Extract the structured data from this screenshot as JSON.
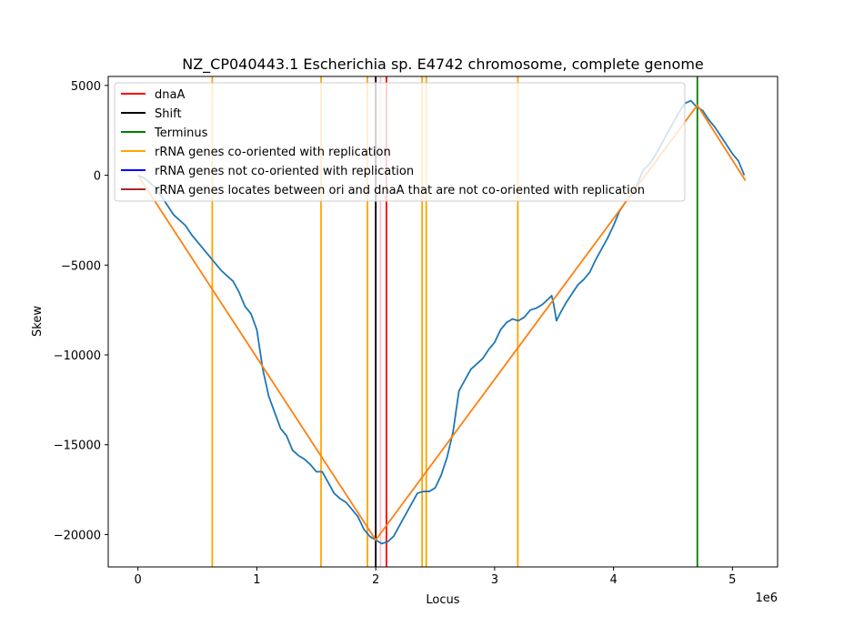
{
  "chart_data": {
    "type": "line",
    "title": "NZ_CP040443.1 Escherichia sp. E4742 chromosome, complete genome",
    "xlabel": "Locus",
    "ylabel": "Skew",
    "x_offset_label": "1e6",
    "xlim": [
      -250000,
      5380000
    ],
    "ylim": [
      -21800,
      5500
    ],
    "x_ticks": [
      {
        "value": 0,
        "label": "0"
      },
      {
        "value": 1000000,
        "label": "1"
      },
      {
        "value": 2000000,
        "label": "2"
      },
      {
        "value": 3000000,
        "label": "3"
      },
      {
        "value": 4000000,
        "label": "4"
      },
      {
        "value": 5000000,
        "label": "5"
      }
    ],
    "y_ticks": [
      {
        "value": 5000,
        "label": "5000"
      },
      {
        "value": 0,
        "label": "0"
      },
      {
        "value": -5000,
        "label": "−5000"
      },
      {
        "value": -10000,
        "label": "−10000"
      },
      {
        "value": -15000,
        "label": "−15000"
      },
      {
        "value": -20000,
        "label": "−20000"
      }
    ],
    "grid": false,
    "legend_position": "top-left",
    "legend": [
      {
        "label": "dnaA",
        "color": "#ff0000"
      },
      {
        "label": "Shift",
        "color": "#000000"
      },
      {
        "label": "Terminus",
        "color": "#008000"
      },
      {
        "label": "rRNA genes co-oriented with replication",
        "color": "#ffa500"
      },
      {
        "label": "rRNA genes not co-oriented with replication",
        "color": "#0000ff"
      },
      {
        "label": "rRNA genes locates between ori and dnaA that are not co-oriented with replication",
        "color": "#a52a2a"
      }
    ],
    "vertical_lines": [
      {
        "x": 625000,
        "color": "#ffa500",
        "kind": "rRNA co-oriented"
      },
      {
        "x": 1540000,
        "color": "#ffa500",
        "kind": "rRNA co-oriented"
      },
      {
        "x": 1930000,
        "color": "#ffa500",
        "kind": "rRNA co-oriented"
      },
      {
        "x": 2390000,
        "color": "#ffa500",
        "kind": "rRNA co-oriented"
      },
      {
        "x": 2425000,
        "color": "#ffa500",
        "kind": "rRNA co-oriented"
      },
      {
        "x": 3195000,
        "color": "#ffa500",
        "kind": "rRNA co-oriented"
      },
      {
        "x": 2000000,
        "color": "#000000",
        "kind": "Shift"
      },
      {
        "x": 2040000,
        "color": "#ffc0cb",
        "kind": "light"
      },
      {
        "x": 2090000,
        "color": "#ff0000",
        "kind": "dnaA"
      },
      {
        "x": 4705000,
        "color": "#008000",
        "kind": "Terminus"
      }
    ],
    "series": [
      {
        "color": "#1f77b4",
        "points": [
          [
            0,
            0
          ],
          [
            50000,
            -150
          ],
          [
            100000,
            -400
          ],
          [
            150000,
            -700
          ],
          [
            200000,
            -1200
          ],
          [
            250000,
            -1700
          ],
          [
            300000,
            -2200
          ],
          [
            350000,
            -2500
          ],
          [
            400000,
            -2800
          ],
          [
            450000,
            -3300
          ],
          [
            500000,
            -3700
          ],
          [
            550000,
            -4100
          ],
          [
            600000,
            -4500
          ],
          [
            650000,
            -4900
          ],
          [
            700000,
            -5300
          ],
          [
            750000,
            -5600
          ],
          [
            800000,
            -5900
          ],
          [
            850000,
            -6500
          ],
          [
            900000,
            -7300
          ],
          [
            950000,
            -7700
          ],
          [
            1000000,
            -8600
          ],
          [
            1050000,
            -10800
          ],
          [
            1100000,
            -12300
          ],
          [
            1150000,
            -13200
          ],
          [
            1200000,
            -14100
          ],
          [
            1250000,
            -14500
          ],
          [
            1300000,
            -15300
          ],
          [
            1350000,
            -15600
          ],
          [
            1400000,
            -15800
          ],
          [
            1450000,
            -16100
          ],
          [
            1500000,
            -16500
          ],
          [
            1550000,
            -16500
          ],
          [
            1600000,
            -17100
          ],
          [
            1650000,
            -17700
          ],
          [
            1700000,
            -18000
          ],
          [
            1750000,
            -18200
          ],
          [
            1800000,
            -18600
          ],
          [
            1850000,
            -19000
          ],
          [
            1900000,
            -19700
          ],
          [
            1950000,
            -20100
          ],
          [
            2000000,
            -20300
          ],
          [
            2050000,
            -20500
          ],
          [
            2100000,
            -20400
          ],
          [
            2150000,
            -20100
          ],
          [
            2200000,
            -19500
          ],
          [
            2250000,
            -18900
          ],
          [
            2300000,
            -18300
          ],
          [
            2350000,
            -17700
          ],
          [
            2400000,
            -17600
          ],
          [
            2450000,
            -17600
          ],
          [
            2500000,
            -17400
          ],
          [
            2550000,
            -16700
          ],
          [
            2600000,
            -15700
          ],
          [
            2650000,
            -14300
          ],
          [
            2700000,
            -12000
          ],
          [
            2750000,
            -11400
          ],
          [
            2800000,
            -10800
          ],
          [
            2850000,
            -10500
          ],
          [
            2900000,
            -10200
          ],
          [
            2950000,
            -9700
          ],
          [
            3000000,
            -9300
          ],
          [
            3050000,
            -8600
          ],
          [
            3100000,
            -8200
          ],
          [
            3150000,
            -8000
          ],
          [
            3200000,
            -8100
          ],
          [
            3250000,
            -7900
          ],
          [
            3300000,
            -7500
          ],
          [
            3350000,
            -7400
          ],
          [
            3400000,
            -7200
          ],
          [
            3450000,
            -6900
          ],
          [
            3480000,
            -6700
          ],
          [
            3500000,
            -7300
          ],
          [
            3520000,
            -8100
          ],
          [
            3550000,
            -7700
          ],
          [
            3600000,
            -7100
          ],
          [
            3650000,
            -6600
          ],
          [
            3700000,
            -6100
          ],
          [
            3750000,
            -5800
          ],
          [
            3800000,
            -5400
          ],
          [
            3850000,
            -4700
          ],
          [
            3900000,
            -4100
          ],
          [
            3950000,
            -3500
          ],
          [
            4000000,
            -2800
          ],
          [
            4050000,
            -2000
          ],
          [
            4100000,
            -1500
          ],
          [
            4150000,
            -1100
          ],
          [
            4200000,
            -500
          ],
          [
            4250000,
            300
          ],
          [
            4300000,
            600
          ],
          [
            4350000,
            1100
          ],
          [
            4400000,
            1700
          ],
          [
            4450000,
            2300
          ],
          [
            4500000,
            2900
          ],
          [
            4550000,
            3500
          ],
          [
            4600000,
            4000
          ],
          [
            4650000,
            4150
          ],
          [
            4700000,
            3800
          ],
          [
            4750000,
            3600
          ],
          [
            4800000,
            3100
          ],
          [
            4850000,
            2700
          ],
          [
            4900000,
            2200
          ],
          [
            4950000,
            1700
          ],
          [
            5000000,
            1200
          ],
          [
            5050000,
            800
          ],
          [
            5100000,
            0
          ]
        ]
      },
      {
        "color": "#ff7f0e",
        "points": [
          [
            0,
            0
          ],
          [
            2000000,
            -20300
          ],
          [
            4705000,
            3900
          ],
          [
            5110000,
            -300
          ]
        ]
      }
    ]
  }
}
